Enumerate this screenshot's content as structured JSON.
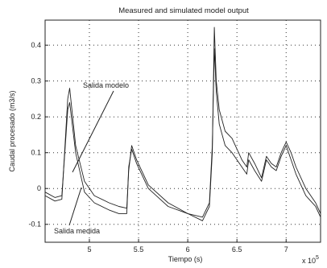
{
  "chart_data": {
    "type": "line",
    "title": "Measured and simulated model output",
    "xlabel": "Tiempo (s)",
    "ylabel": "Caudal procesado (m3/s)",
    "x_multiplier_label": "x 10",
    "x_multiplier_exponent": "5",
    "xlim": [
      4.55,
      7.35
    ],
    "ylim": [
      -0.15,
      0.47
    ],
    "x_ticks": [
      {
        "value": 5,
        "label": "5"
      },
      {
        "value": 5.5,
        "label": "5.5"
      },
      {
        "value": 6,
        "label": "6"
      },
      {
        "value": 6.5,
        "label": "6.5"
      },
      {
        "value": 7,
        "label": "7"
      }
    ],
    "y_ticks": [
      {
        "value": -0.1,
        "label": "-0.1"
      },
      {
        "value": 0,
        "label": "0"
      },
      {
        "value": 0.1,
        "label": "0.1"
      },
      {
        "value": 0.2,
        "label": "0.2"
      },
      {
        "value": 0.3,
        "label": "0.3"
      },
      {
        "value": 0.4,
        "label": "0.4"
      }
    ],
    "grid": true,
    "annotations": [
      {
        "text": "Salida modelo",
        "at_series": "modelo"
      },
      {
        "text": "Salida medida",
        "at_series": "medida"
      }
    ],
    "series": [
      {
        "name": "Salida medida",
        "x": [
          4.55,
          4.65,
          4.72,
          4.78,
          4.8,
          4.86,
          4.95,
          5.05,
          5.2,
          5.3,
          5.38,
          5.4,
          5.43,
          5.48,
          5.6,
          5.8,
          6.0,
          6.15,
          6.22,
          6.25,
          6.27,
          6.29,
          6.32,
          6.38,
          6.45,
          6.55,
          6.6,
          6.62,
          6.68,
          6.75,
          6.8,
          6.85,
          6.9,
          6.95,
          7.0,
          7.05,
          7.1,
          7.2,
          7.3,
          7.35
        ],
        "y": [
          -0.02,
          -0.035,
          -0.03,
          0.25,
          0.28,
          0.12,
          0.02,
          -0.02,
          -0.04,
          -0.05,
          -0.055,
          0.05,
          0.12,
          0.08,
          0.01,
          -0.04,
          -0.07,
          -0.09,
          -0.05,
          0.1,
          0.45,
          0.3,
          0.22,
          0.16,
          0.14,
          0.08,
          0.06,
          0.1,
          0.07,
          0.03,
          0.09,
          0.07,
          0.06,
          0.1,
          0.13,
          0.1,
          0.06,
          0.0,
          -0.04,
          -0.07
        ]
      },
      {
        "name": "Salida modelo",
        "x": [
          4.55,
          4.65,
          4.72,
          4.78,
          4.8,
          4.86,
          4.95,
          5.05,
          5.2,
          5.3,
          5.38,
          5.4,
          5.43,
          5.48,
          5.6,
          5.8,
          6.0,
          6.15,
          6.22,
          6.25,
          6.27,
          6.29,
          6.32,
          6.38,
          6.45,
          6.55,
          6.6,
          6.62,
          6.68,
          6.75,
          6.8,
          6.85,
          6.9,
          6.95,
          7.0,
          7.05,
          7.1,
          7.2,
          7.3,
          7.35
        ],
        "y": [
          -0.01,
          -0.025,
          -0.02,
          0.22,
          0.24,
          0.1,
          -0.01,
          -0.04,
          -0.06,
          -0.07,
          -0.07,
          0.06,
          0.11,
          0.07,
          0.0,
          -0.05,
          -0.07,
          -0.08,
          -0.04,
          0.12,
          0.39,
          0.27,
          0.18,
          0.12,
          0.1,
          0.06,
          0.04,
          0.08,
          0.05,
          0.02,
          0.08,
          0.06,
          0.05,
          0.09,
          0.12,
          0.08,
          0.04,
          -0.02,
          -0.05,
          -0.08
        ]
      }
    ]
  }
}
